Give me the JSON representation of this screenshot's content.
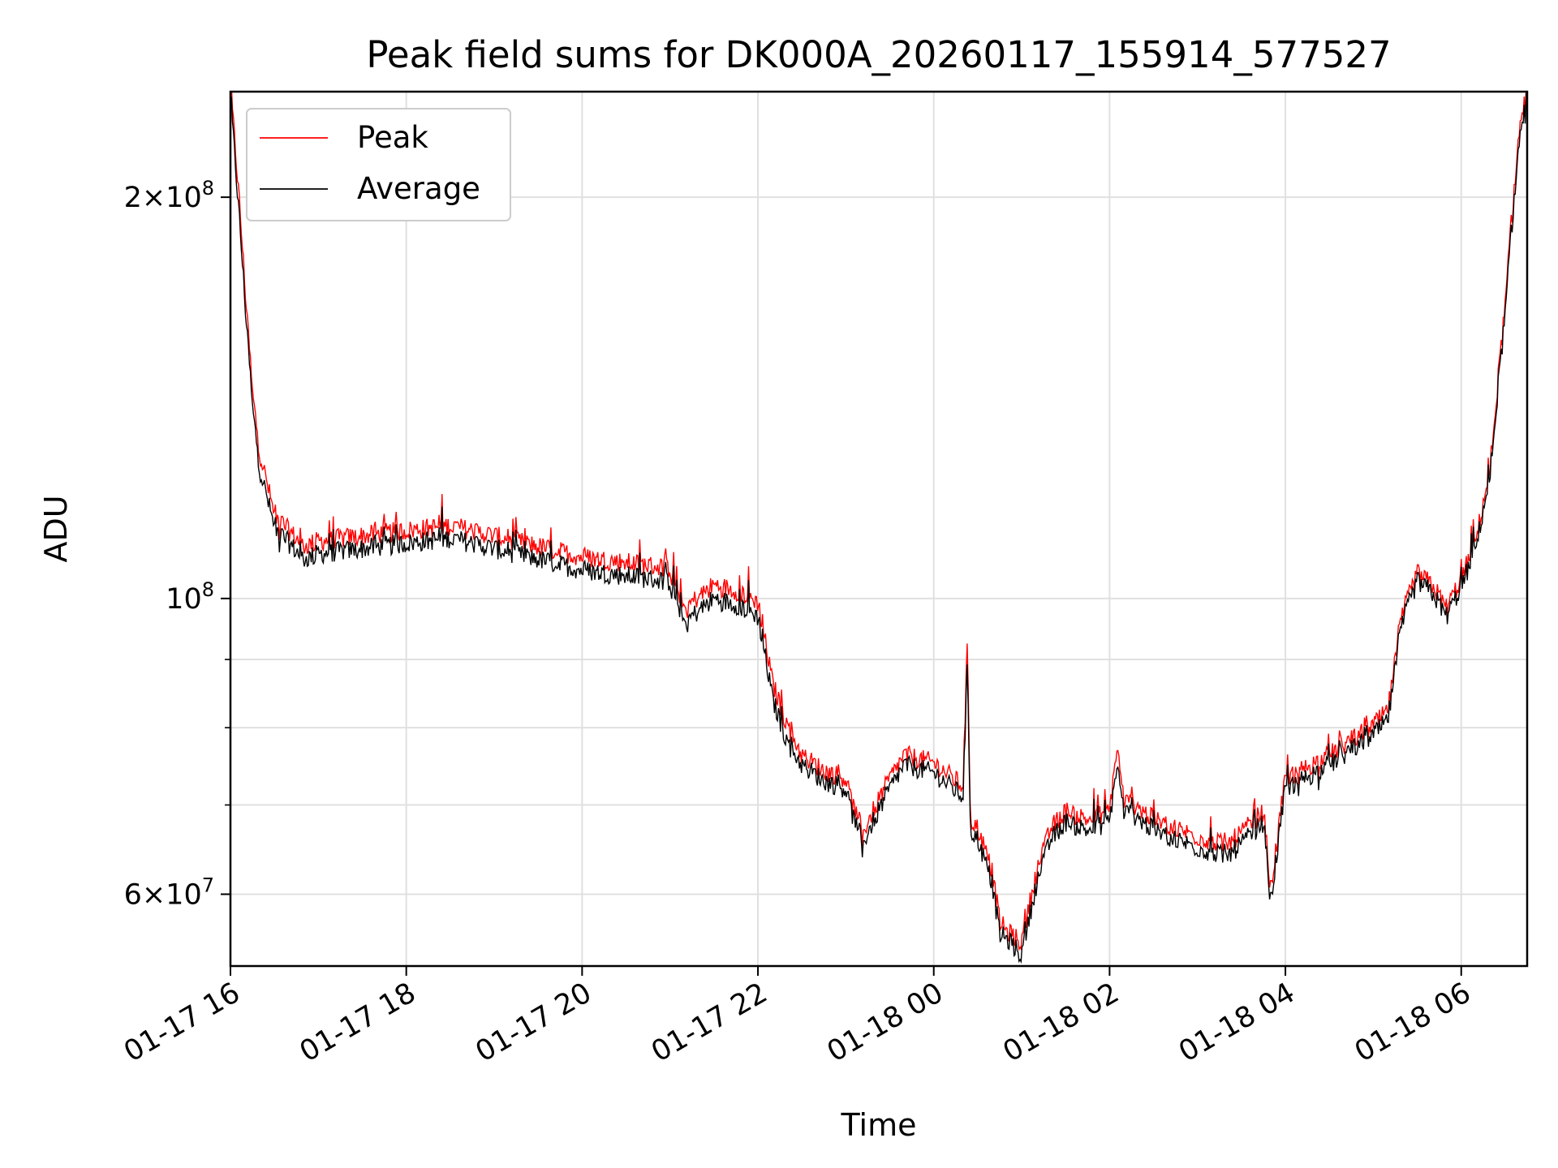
{
  "chart_data": {
    "type": "line",
    "title": "Peak field sums for DK000A_20260117_155914_577527",
    "xlabel": "Time",
    "ylabel": "ADU",
    "x_unit": "time",
    "x_range": [
      "01-17 16:00",
      "01-18 06:45"
    ],
    "y_scale": "log",
    "ylim": [
      53000000,
      240000000
    ],
    "grid": true,
    "legend_position": "upper left",
    "x_ticks": [
      "01-17 16",
      "01-17 18",
      "01-17 20",
      "01-17 22",
      "01-18 00",
      "01-18 02",
      "01-18 04",
      "01-18 06"
    ],
    "y_tick_labels": [
      {
        "value": 200000000,
        "mant": "2",
        "exp": "8"
      },
      {
        "value": 100000000,
        "mant": "",
        "exp": "8"
      },
      {
        "value": 60000000,
        "mant": "6",
        "exp": "7"
      }
    ],
    "y_minor_ticks": [
      70000000,
      80000000,
      90000000
    ],
    "series": [
      {
        "name": "Peak",
        "color": "#ff0000"
      },
      {
        "name": "Average",
        "color": "#000000"
      }
    ],
    "x": [
      "01-17 16:00",
      "01-17 16:05",
      "01-17 16:10",
      "01-17 16:15",
      "01-17 16:20",
      "01-17 16:30",
      "01-17 16:40",
      "01-17 16:50",
      "01-17 17:00",
      "01-17 17:30",
      "01-17 18:00",
      "01-17 18:30",
      "01-17 19:00",
      "01-17 19:30",
      "01-17 20:00",
      "01-17 20:30",
      "01-17 21:00",
      "01-17 21:10",
      "01-17 21:20",
      "01-17 21:30",
      "01-17 21:45",
      "01-17 22:00",
      "01-17 22:10",
      "01-17 22:20",
      "01-17 22:30",
      "01-17 22:45",
      "01-17 23:00",
      "01-17 23:10",
      "01-17 23:30",
      "01-17 23:40",
      "01-18 00:00",
      "01-18 00:20",
      "01-18 00:23",
      "01-18 00:25",
      "01-18 00:30",
      "01-18 00:40",
      "01-18 00:45",
      "01-18 00:50",
      "01-18 01:00",
      "01-18 01:10",
      "01-18 01:20",
      "01-18 01:30",
      "01-18 01:45",
      "01-18 02:00",
      "01-18 02:05",
      "01-18 02:10",
      "01-18 02:15",
      "01-18 02:30",
      "01-18 03:00",
      "01-18 03:20",
      "01-18 03:40",
      "01-18 03:45",
      "01-18 03:50",
      "01-18 04:00",
      "01-18 04:30",
      "01-18 05:00",
      "01-18 05:10",
      "01-18 05:20",
      "01-18 05:30",
      "01-18 05:40",
      "01-18 05:50",
      "01-18 06:00",
      "01-18 06:10",
      "01-18 06:20",
      "01-18 06:30",
      "01-18 06:40",
      "01-18 06:45"
    ],
    "peak": [
      240000000,
      205000000,
      170000000,
      142000000,
      128000000,
      115000000,
      112000000,
      109000000,
      110000000,
      111000000,
      112000000,
      113000000,
      111000000,
      109000000,
      107000000,
      106000000,
      105000000,
      98000000,
      100000000,
      102000000,
      101000000,
      99000000,
      86000000,
      80000000,
      76000000,
      74000000,
      73000000,
      66000000,
      73000000,
      76000000,
      75000000,
      72000000,
      92000000,
      68000000,
      67000000,
      62000000,
      57000000,
      56000000,
      55000000,
      62000000,
      67000000,
      69000000,
      68000000,
      69000000,
      77000000,
      70000000,
      70000000,
      68000000,
      66000000,
      65000000,
      68000000,
      69000000,
      60000000,
      73000000,
      76000000,
      80000000,
      82000000,
      97000000,
      104000000,
      102000000,
      98000000,
      103000000,
      110000000,
      125000000,
      165000000,
      225000000,
      240000000
    ],
    "average": [
      236000000,
      200000000,
      166000000,
      139000000,
      125000000,
      113000000,
      110000000,
      107000000,
      108000000,
      109000000,
      110000000,
      111000000,
      109000000,
      107000000,
      105000000,
      104000000,
      103000000,
      96000000,
      98000000,
      100000000,
      99000000,
      97000000,
      84000000,
      78000000,
      75000000,
      73000000,
      72000000,
      65000000,
      72000000,
      75000000,
      74000000,
      71000000,
      89000000,
      67000000,
      66000000,
      61000000,
      56000000,
      55500000,
      54000000,
      61000000,
      66000000,
      68000000,
      67000000,
      68000000,
      75000000,
      69000000,
      69000000,
      67000000,
      65000000,
      64000000,
      67000000,
      68000000,
      59000000,
      72000000,
      75000000,
      79000000,
      81000000,
      96000000,
      103000000,
      101000000,
      97000000,
      102000000,
      109000000,
      124000000,
      163000000,
      222000000,
      238000000
    ]
  }
}
